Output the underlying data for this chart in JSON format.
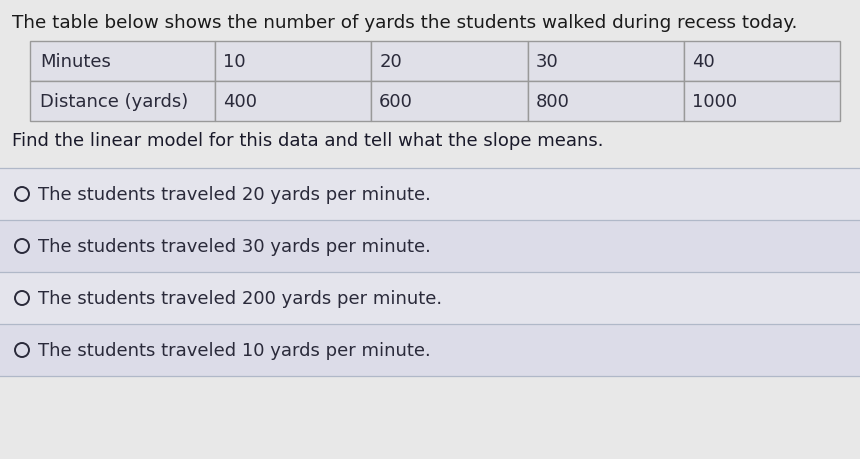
{
  "title": "The table below shows the number of yards the students walked during recess today.",
  "table_row1": [
    "Minutes",
    "10",
    "20",
    "30",
    "40"
  ],
  "table_row2": [
    "Distance (yards)",
    "400",
    "600",
    "800",
    "1000"
  ],
  "question": "Find the linear model for this data and tell what the slope means.",
  "choices": [
    "The students traveled 20 yards per minute.",
    "The students traveled 30 yards per minute.",
    "The students traveled 200 yards per minute.",
    "The students traveled 10 yards per minute."
  ],
  "bg_color": "#e8e8e8",
  "table_cell_bg": "#e0e0e8",
  "table_border_color": "#999999",
  "text_color": "#2a2a3a",
  "choice_line_color": "#b0b8c8",
  "question_text_color": "#1a1a2a",
  "title_color": "#1a1a1a",
  "choice_bg_even": "#e4e4ec",
  "choice_bg_odd": "#dcdce8"
}
